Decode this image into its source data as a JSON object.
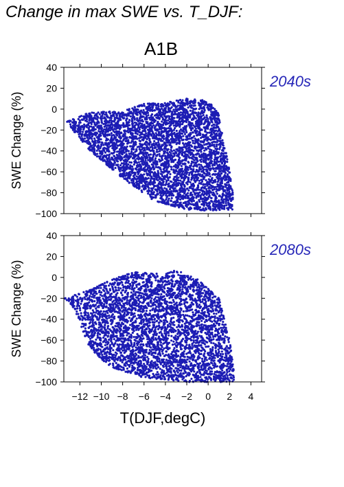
{
  "figure_title": "Change in max SWE vs. T_DJF:",
  "scenario_label": "A1B",
  "colors": {
    "points": "#1c1cb4",
    "period_label": "#2626b8",
    "axis": "#000000"
  },
  "chart_data": [
    {
      "type": "scatter",
      "period": "2040s",
      "ylabel": "SWE Change (%)",
      "xlabel": "",
      "xlim": [
        -13.5,
        5
      ],
      "ylim": [
        -100,
        40
      ],
      "xticks": [
        -12,
        -10,
        -8,
        -6,
        -4,
        -2,
        0,
        2,
        4
      ],
      "xtick_labels": [],
      "yticks": [
        40,
        20,
        0,
        -20,
        -40,
        -60,
        -80,
        -100
      ],
      "ytick_labels": [
        "40",
        "20",
        "0",
        "−20",
        "−40",
        "−60",
        "−80",
        "−100"
      ],
      "point_cloud": {
        "approx_x_range": [
          -13.2,
          2.3
        ],
        "approx_y_range": [
          -98,
          11
        ],
        "outline": [
          [
            -13.2,
            -12
          ],
          [
            -11,
            -3
          ],
          [
            -8,
            -2
          ],
          [
            -6,
            5
          ],
          [
            -4,
            6
          ],
          [
            -2,
            10
          ],
          [
            0,
            8
          ],
          [
            1,
            -5
          ],
          [
            2,
            -60
          ],
          [
            2.3,
            -80
          ],
          [
            2.3,
            -96
          ],
          [
            0,
            -97
          ],
          [
            -2,
            -96
          ],
          [
            -5,
            -88
          ],
          [
            -8,
            -66
          ],
          [
            -11,
            -40
          ],
          [
            -12.5,
            -22
          ]
        ]
      }
    },
    {
      "type": "scatter",
      "period": "2080s",
      "ylabel": "SWE Change (%)",
      "xlabel": "T(DJF,degC)",
      "xlim": [
        -13.5,
        5
      ],
      "ylim": [
        -100,
        40
      ],
      "xticks": [
        -12,
        -10,
        -8,
        -6,
        -4,
        -2,
        0,
        2,
        4
      ],
      "xtick_labels": [
        "−12",
        "−10",
        "−8",
        "−6",
        "−4",
        "−2",
        "0",
        "2",
        "4"
      ],
      "yticks": [
        40,
        20,
        0,
        -20,
        -40,
        -60,
        -80,
        -100
      ],
      "ytick_labels": [
        "40",
        "20",
        "0",
        "−20",
        "−40",
        "−60",
        "−80",
        "−100"
      ],
      "point_cloud": {
        "approx_x_range": [
          -13.4,
          2.4
        ],
        "approx_y_range": [
          -100,
          7
        ],
        "outline": [
          [
            -13.4,
            -20
          ],
          [
            -11,
            -12
          ],
          [
            -9,
            -2
          ],
          [
            -7,
            5
          ],
          [
            -4,
            3
          ],
          [
            -3,
            7
          ],
          [
            -1,
            -2
          ],
          [
            1,
            -20
          ],
          [
            2,
            -60
          ],
          [
            2.4,
            -88
          ],
          [
            2.4,
            -100
          ],
          [
            -2,
            -100
          ],
          [
            -6,
            -96
          ],
          [
            -9,
            -86
          ],
          [
            -11,
            -70
          ],
          [
            -12.5,
            -30
          ]
        ]
      }
    }
  ]
}
